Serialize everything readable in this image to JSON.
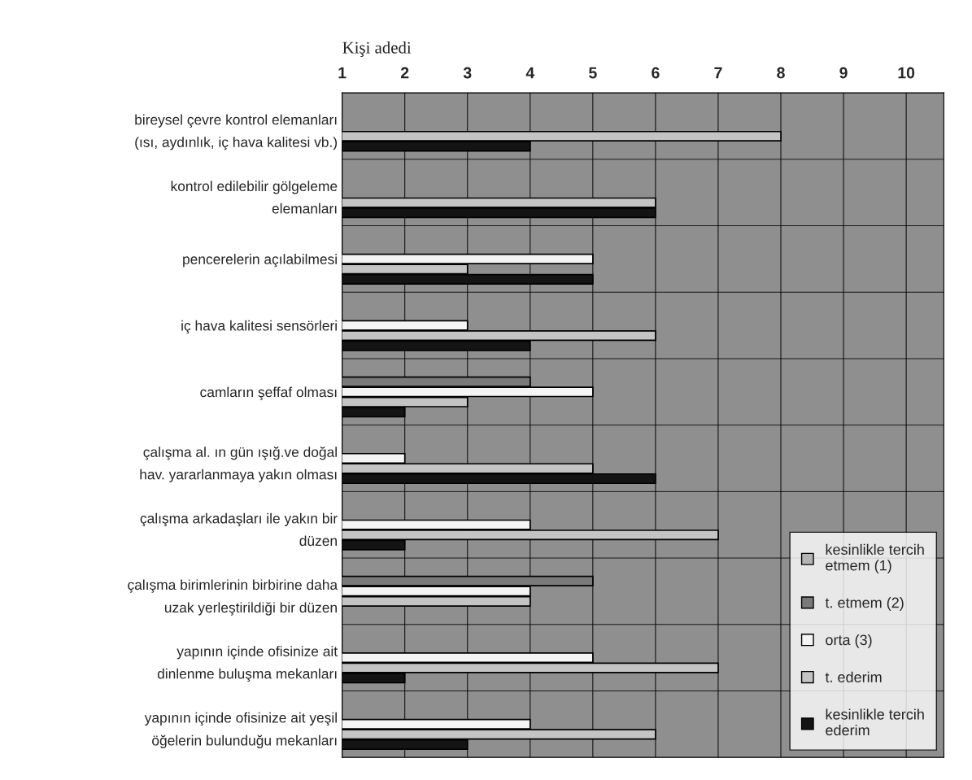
{
  "chart_data": {
    "type": "bar",
    "orientation": "horizontal",
    "xlabel": "Kişi adedi",
    "categories": [
      "bireysel çevre kontrol elemanları\n(ısı, aydınlık, iç hava kalitesi vb.)",
      "kontrol edilebilir gölgeleme\nelemanları",
      "pencerelerin açılabilmesi",
      "iç hava kalitesi sensörleri",
      "camların şeffaf olması",
      "çalışma al. ın gün ışığ.ve doğal\nhav. yararlanmaya yakın olması",
      "çalışma arkadaşları ile yakın bir\ndüzen",
      "çalışma birimlerinin birbirine daha\nuzak yerleştirildiği bir düzen",
      "yapının içinde ofisinize ait\ndinlenme buluşma mekanları",
      "yapının içinde ofisinize ait yeşil\nöğelerin bulunduğu mekanları"
    ],
    "series": [
      {
        "name": "kesinlikle tercih\netmem (1)",
        "color": "#b4b4b4",
        "values": [
          null,
          null,
          null,
          null,
          null,
          null,
          null,
          null,
          null,
          null
        ]
      },
      {
        "name": "t. etmem (2)",
        "color": "#7a7a7a",
        "values": [
          null,
          null,
          null,
          null,
          4,
          null,
          null,
          5,
          null,
          null
        ]
      },
      {
        "name": "orta (3)",
        "color": "#f4f4f4",
        "values": [
          null,
          null,
          5,
          3,
          5,
          2,
          4,
          4,
          5,
          4
        ]
      },
      {
        "name": "t. ederim",
        "color": "#c4c4c4",
        "values": [
          8,
          6,
          3,
          6,
          3,
          5,
          7,
          4,
          7,
          6
        ]
      },
      {
        "name": "kesinlikle tercih\nederim",
        "color": "#141414",
        "values": [
          4,
          6,
          5,
          4,
          2,
          6,
          2,
          null,
          2,
          3
        ]
      }
    ],
    "xlim": [
      1,
      10.6
    ],
    "xticks": [
      1,
      2,
      3,
      4,
      5,
      6,
      7,
      8,
      9,
      10
    ],
    "grid": "x",
    "legend": "bottom right"
  }
}
